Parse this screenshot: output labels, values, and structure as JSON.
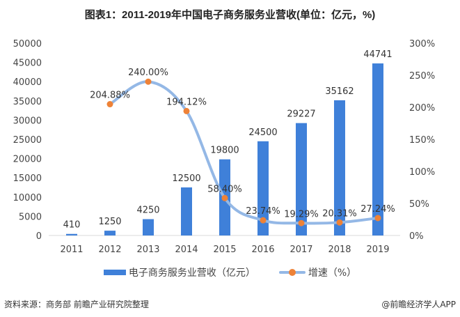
{
  "title": "图表1：2011-2019年中国电子商务服务业营收(单位：亿元，%)",
  "chart_data": {
    "type": "bar",
    "categories": [
      "2011",
      "2012",
      "2013",
      "2014",
      "2015",
      "2016",
      "2017",
      "2018",
      "2019"
    ],
    "series": [
      {
        "name": "电子商务服务业营收（亿元）",
        "type": "bar",
        "axis": "left",
        "color": "#3f80d9",
        "values": [
          410,
          1250,
          4250,
          12500,
          19800,
          24500,
          29227,
          35162,
          44741
        ],
        "labels": [
          "410",
          "1250",
          "4250",
          "12500",
          "19800",
          "24500",
          "29227",
          "35162",
          "44741"
        ]
      },
      {
        "name": "增速（%）",
        "type": "line",
        "axis": "right",
        "color": "#94b8e6",
        "marker_color": "#ee8237",
        "values": [
          null,
          204.88,
          240.0,
          194.12,
          58.4,
          23.74,
          19.29,
          20.31,
          27.24
        ],
        "labels": [
          "",
          "204.88%",
          "240.00%",
          "194.12%",
          "58.40%",
          "23.74%",
          "19.29%",
          "20.31%",
          "27.24%"
        ]
      }
    ],
    "ylim": [
      0,
      50000
    ],
    "y_ticks": [
      "0",
      "5000",
      "10000",
      "15000",
      "20000",
      "25000",
      "30000",
      "35000",
      "40000",
      "45000",
      "50000"
    ],
    "y2lim": [
      0,
      300
    ],
    "y2_ticks": [
      "0%",
      "50%",
      "100%",
      "150%",
      "200%",
      "250%",
      "300%"
    ],
    "grid": false,
    "legend": "bottom"
  },
  "footer": {
    "source": "资料来源：商务部 前瞻产业研究院整理",
    "credit": "@前瞻经济学人APP"
  }
}
